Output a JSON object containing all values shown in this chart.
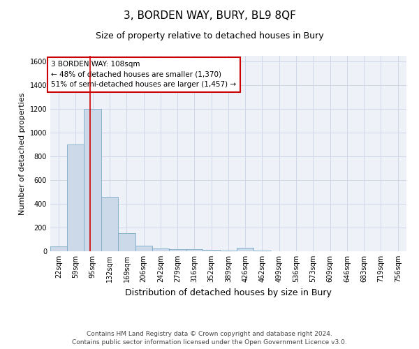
{
  "title": "3, BORDEN WAY, BURY, BL9 8QF",
  "subtitle": "Size of property relative to detached houses in Bury",
  "xlabel": "Distribution of detached houses by size in Bury",
  "ylabel": "Number of detached properties",
  "footer_line1": "Contains HM Land Registry data © Crown copyright and database right 2024.",
  "footer_line2": "Contains public sector information licensed under the Open Government Licence v3.0.",
  "annotation_title": "3 BORDEN WAY: 108sqm",
  "annotation_line1": "← 48% of detached houses are smaller (1,370)",
  "annotation_line2": "51% of semi-detached houses are larger (1,457) →",
  "bar_color": "#ccd9e8",
  "bar_edgecolor": "#7aaac8",
  "vline_color": "#cc0000",
  "vline_x": 108,
  "categories": [
    "22sqm",
    "59sqm",
    "95sqm",
    "132sqm",
    "169sqm",
    "206sqm",
    "242sqm",
    "279sqm",
    "316sqm",
    "352sqm",
    "389sqm",
    "426sqm",
    "462sqm",
    "499sqm",
    "536sqm",
    "573sqm",
    "609sqm",
    "646sqm",
    "683sqm",
    "719sqm",
    "756sqm"
  ],
  "bin_edges": [
    22,
    59,
    95,
    132,
    169,
    206,
    242,
    279,
    316,
    352,
    389,
    426,
    462,
    499,
    536,
    573,
    609,
    646,
    683,
    719,
    756,
    793
  ],
  "values": [
    40,
    900,
    1200,
    460,
    155,
    50,
    25,
    15,
    15,
    10,
    5,
    30,
    5,
    2,
    1,
    1,
    0,
    0,
    0,
    0,
    0
  ],
  "ylim": [
    0,
    1650
  ],
  "yticks": [
    0,
    200,
    400,
    600,
    800,
    1000,
    1200,
    1400,
    1600
  ],
  "grid_color": "#d0d8e8",
  "background_color": "#eef2f8",
  "annotation_box_color": "#ffffff",
  "annotation_box_edgecolor": "#cc0000",
  "title_fontsize": 11,
  "subtitle_fontsize": 9,
  "xlabel_fontsize": 9,
  "ylabel_fontsize": 8,
  "tick_fontsize": 7,
  "annotation_fontsize": 7.5,
  "footer_fontsize": 6.5
}
